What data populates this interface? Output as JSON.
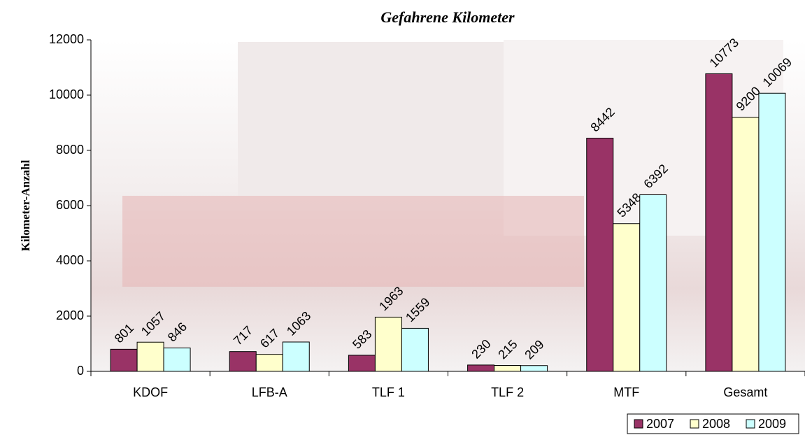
{
  "chart_data": {
    "type": "bar",
    "title": "Gefahrene Kilometer",
    "y_label": "Kilometer-Anzahl",
    "categories": [
      "KDOF",
      "LFB-A",
      "TLF 1",
      "TLF 2",
      "MTF",
      "Gesamt"
    ],
    "series": [
      {
        "name": "2007",
        "color": "#993366",
        "values": [
          801,
          717,
          583,
          230,
          8442,
          10773
        ]
      },
      {
        "name": "2008",
        "color": "#FFFFCC",
        "values": [
          1057,
          617,
          1963,
          215,
          5348,
          9200
        ]
      },
      {
        "name": "2009",
        "color": "#CCFFFF",
        "values": [
          846,
          1063,
          1559,
          209,
          6392,
          10069
        ]
      }
    ],
    "ylim": [
      0,
      12000
    ],
    "yticks": [
      0,
      2000,
      4000,
      6000,
      8000,
      10000,
      12000
    ],
    "legend": "bottom-right"
  }
}
